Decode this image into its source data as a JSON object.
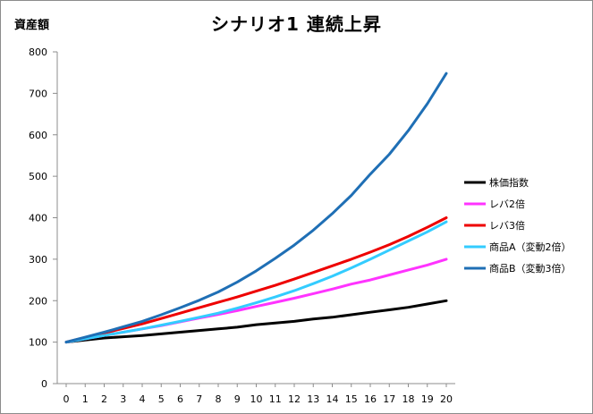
{
  "chart_data": {
    "type": "line",
    "title": "シナリオ1 連続上昇",
    "xlabel": "",
    "ylabel": "資産額",
    "x": [
      0,
      1,
      2,
      3,
      4,
      5,
      6,
      7,
      8,
      9,
      10,
      11,
      12,
      13,
      14,
      15,
      16,
      17,
      18,
      19,
      20
    ],
    "xlim": [
      0,
      20
    ],
    "ylim": [
      0,
      800
    ],
    "yticks": [
      0,
      100,
      200,
      300,
      400,
      500,
      600,
      700,
      800
    ],
    "grid": false,
    "legend_position": "right",
    "series": [
      {
        "name": "株価指数",
        "color": "#000000",
        "values": [
          100,
          105,
          110,
          113,
          116,
          120,
          124,
          128,
          132,
          136,
          142,
          146,
          150,
          156,
          160,
          166,
          172,
          178,
          184,
          192,
          200
        ]
      },
      {
        "name": "レバ2倍",
        "color": "#ff33ff",
        "values": [
          100,
          108,
          116,
          124,
          132,
          140,
          149,
          158,
          167,
          176,
          186,
          196,
          206,
          217,
          228,
          240,
          250,
          262,
          274,
          286,
          300
        ]
      },
      {
        "name": "レバ3倍",
        "color": "#ee0000",
        "values": [
          100,
          111,
          122,
          133,
          144,
          157,
          170,
          183,
          196,
          209,
          223,
          237,
          252,
          268,
          284,
          300,
          317,
          335,
          355,
          377,
          400
        ]
      },
      {
        "name": "商品A（変動2倍）",
        "color": "#33ccff",
        "values": [
          100,
          108,
          116,
          124,
          132,
          141,
          150,
          160,
          170,
          182,
          195,
          209,
          224,
          241,
          259,
          279,
          300,
          322,
          344,
          366,
          390
        ]
      },
      {
        "name": "商品B（変動3倍）",
        "color": "#1f6fb5",
        "values": [
          100,
          112,
          124,
          137,
          150,
          166,
          183,
          201,
          221,
          245,
          272,
          302,
          334,
          370,
          410,
          454,
          505,
          553,
          610,
          675,
          748
        ]
      }
    ]
  }
}
